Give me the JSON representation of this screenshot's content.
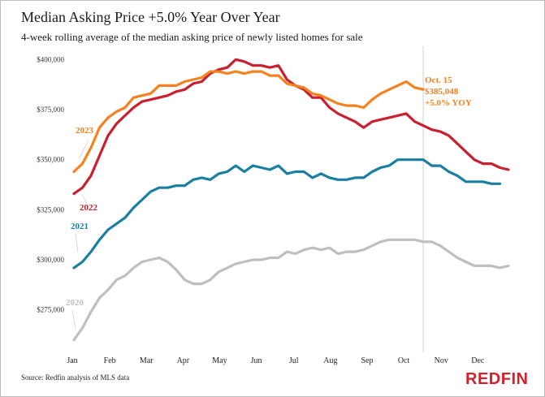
{
  "title": "Median Asking Price +5.0% Year Over Year",
  "subtitle": "4-week rolling average of the median asking price of newly listed homes for sale",
  "source": "Source: Redfin analysis of MLS data",
  "logo": "REDFIN",
  "colors": {
    "2023": "#f5821f",
    "2022": "#c8202f",
    "2021": "#1a7fa0",
    "2020": "#bfbfbf"
  },
  "chart_data": {
    "type": "line",
    "xlabel": "",
    "ylabel": "",
    "ylim": [
      255000,
      405000
    ],
    "xlim": [
      1,
      52
    ],
    "y_ticks": [
      "$275,000",
      "$300,000",
      "$325,000",
      "$350,000",
      "$375,000",
      "$400,000"
    ],
    "y_tick_values": [
      275000,
      300000,
      325000,
      350000,
      375000,
      400000
    ],
    "months": [
      "Jan",
      "Feb",
      "Mar",
      "Apr",
      "May",
      "Jun",
      "Jul",
      "Aug",
      "Sep",
      "Oct",
      "Nov",
      "Dec"
    ],
    "month_weeks": [
      1,
      5.4,
      9.7,
      14,
      18.3,
      22.6,
      27,
      31.3,
      35.6,
      39.9,
      44.3,
      48.6
    ],
    "grid": false,
    "series": [
      {
        "name": "2023",
        "values": [
          344000,
          348000,
          356000,
          366000,
          371000,
          374000,
          376000,
          381000,
          382000,
          383000,
          387000,
          387000,
          387000,
          389000,
          390000,
          391000,
          394000,
          394000,
          393000,
          394000,
          393000,
          394000,
          394000,
          392000,
          392000,
          388000,
          387000,
          386000,
          383000,
          382000,
          380000,
          378000,
          377000,
          377000,
          376000,
          380000,
          383000,
          385000,
          387000,
          389000,
          386000,
          385048
        ]
      },
      {
        "name": "2022",
        "values": [
          333000,
          336000,
          342000,
          352000,
          362000,
          368000,
          372000,
          376000,
          379000,
          380000,
          381000,
          382000,
          384000,
          385000,
          388000,
          389000,
          393000,
          395000,
          396000,
          400000,
          399000,
          397000,
          397000,
          396000,
          397000,
          390000,
          387000,
          385000,
          381000,
          381000,
          376000,
          373000,
          371000,
          369000,
          366000,
          369000,
          370000,
          371000,
          372000,
          373000,
          369000,
          367000,
          365000,
          364000,
          362000,
          358000,
          354000,
          350000,
          348000,
          348000,
          346000,
          345000
        ]
      },
      {
        "name": "2021",
        "values": [
          296000,
          299000,
          304000,
          310000,
          315000,
          318000,
          321000,
          326000,
          330000,
          334000,
          336000,
          336000,
          337000,
          337000,
          340000,
          341000,
          340000,
          343000,
          344000,
          347000,
          344000,
          347000,
          346000,
          345000,
          347000,
          343000,
          344000,
          344000,
          341000,
          343000,
          341000,
          340000,
          340000,
          341000,
          341000,
          344000,
          346000,
          347000,
          350000,
          350000,
          350000,
          350000,
          347000,
          347000,
          344000,
          342000,
          339000,
          339000,
          339000,
          338000,
          338000
        ]
      },
      {
        "name": "2020",
        "values": [
          260000,
          266000,
          274000,
          281000,
          285000,
          290000,
          292000,
          296000,
          299000,
          300000,
          301000,
          299000,
          295000,
          290000,
          288000,
          288000,
          290000,
          294000,
          296000,
          298000,
          299000,
          300000,
          300000,
          301000,
          301000,
          304000,
          303000,
          305000,
          306000,
          305000,
          306000,
          303000,
          304000,
          304000,
          305000,
          307000,
          309000,
          310000,
          310000,
          310000,
          310000,
          309000,
          309000,
          307000,
          304000,
          301000,
          299000,
          297000,
          297000,
          297000,
          296000,
          297000
        ]
      }
    ],
    "series_labels": [
      {
        "text": "2023",
        "series": "2023"
      },
      {
        "text": "2022",
        "series": "2022"
      },
      {
        "text": "2021",
        "series": "2021"
      },
      {
        "text": "2020",
        "series": "2020"
      }
    ],
    "annotation": {
      "week": 42,
      "lines": [
        "Oct. 15",
        "$385,048",
        "+5.0% YOY"
      ]
    }
  }
}
